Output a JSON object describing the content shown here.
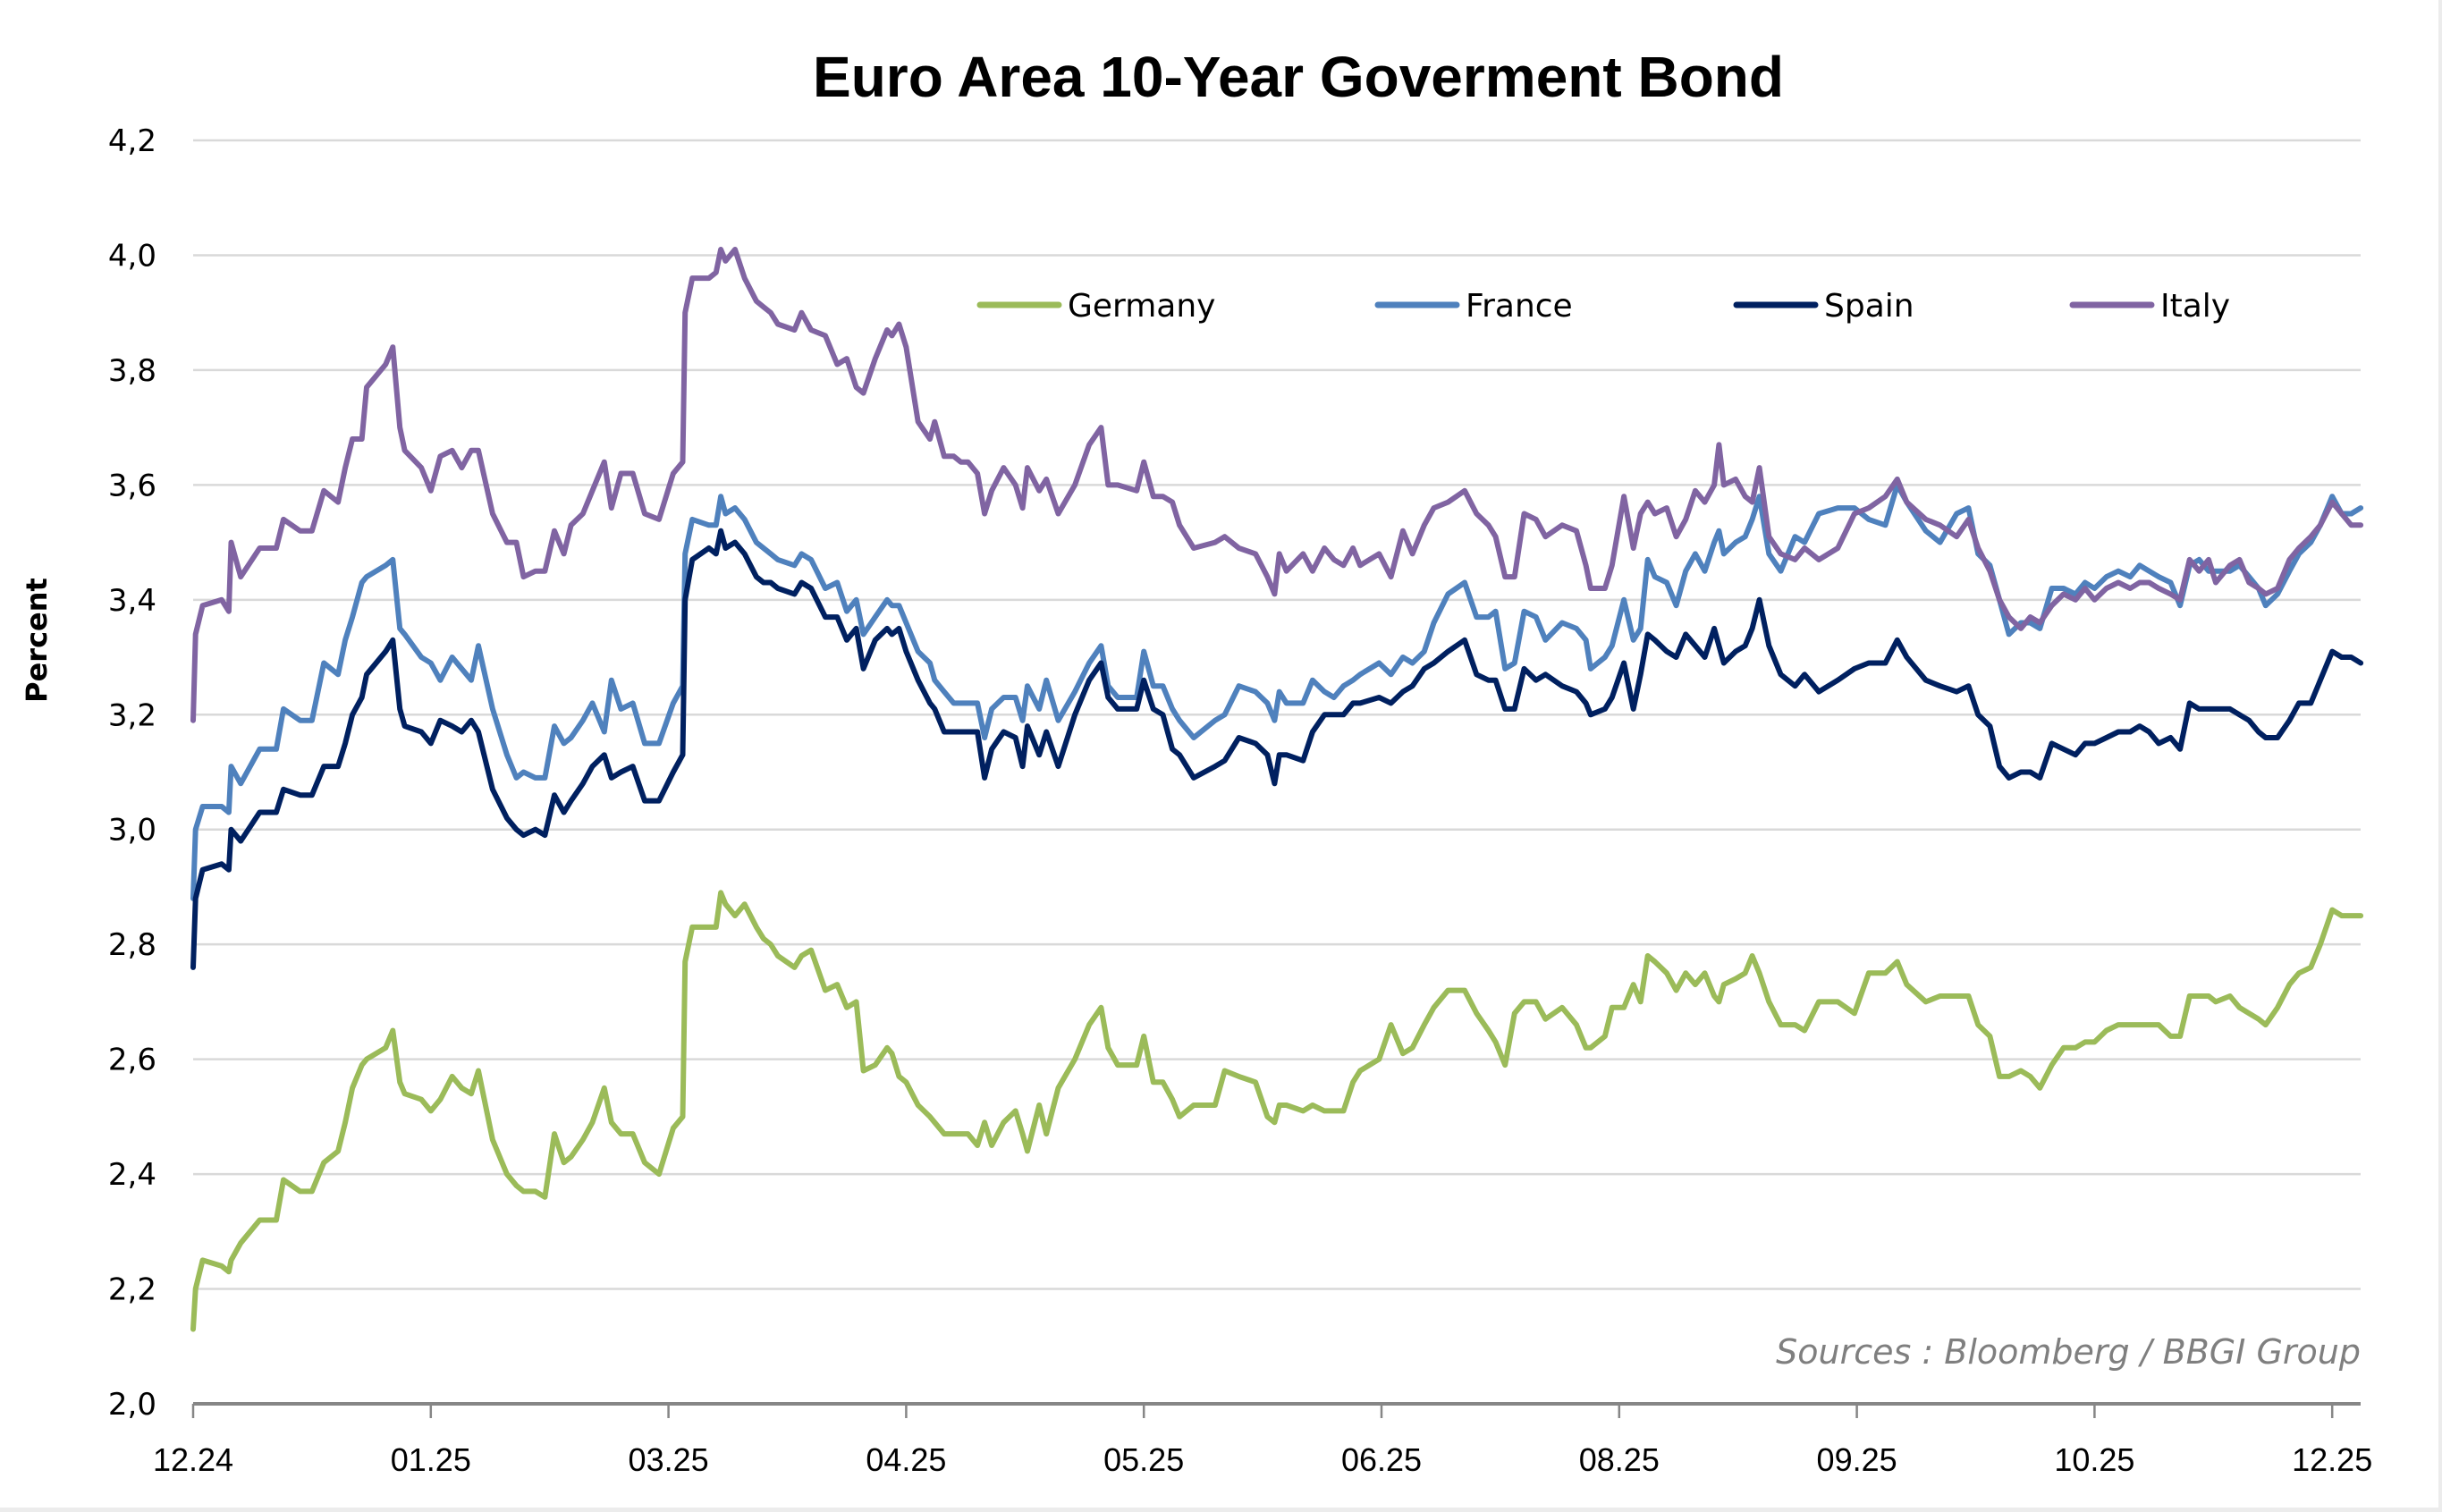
{
  "chart_data": {
    "type": "line",
    "title": "Euro Area 10-Year Goverment Bond",
    "xlabel": "",
    "ylabel": "Percent",
    "ylim": [
      2.0,
      4.2
    ],
    "yticks": [
      2.0,
      2.2,
      2.4,
      2.6,
      2.8,
      3.0,
      3.2,
      3.4,
      3.6,
      3.8,
      4.0,
      4.2
    ],
    "ytick_labels": [
      "2,0",
      "2,2",
      "2,4",
      "2,6",
      "2,8",
      "3,0",
      "3,2",
      "3,4",
      "3,6",
      "3,8",
      "4,0",
      "4,2"
    ],
    "x_unit": "months since 12.24",
    "xlim": [
      0,
      9.12
    ],
    "xticks": [
      0,
      1,
      2,
      3,
      4,
      5,
      6,
      7,
      8,
      9
    ],
    "xtick_labels": [
      "12.24",
      "01.25",
      "03.25",
      "04.25",
      "05.25",
      "06.25",
      "08.25",
      "09.25",
      "10.25",
      "12.25"
    ],
    "grid": true,
    "legend_position": "top-right",
    "source": "Sources : Bloomberg / BBGI Group",
    "x": [
      0.0,
      0.01,
      0.04,
      0.12,
      0.15,
      0.16,
      0.2,
      0.28,
      0.35,
      0.38,
      0.45,
      0.5,
      0.55,
      0.61,
      0.64,
      0.67,
      0.71,
      0.73,
      0.81,
      0.84,
      0.87,
      0.89,
      0.96,
      1.0,
      1.04,
      1.09,
      1.13,
      1.17,
      1.2,
      1.26,
      1.32,
      1.36,
      1.39,
      1.44,
      1.48,
      1.52,
      1.56,
      1.59,
      1.64,
      1.68,
      1.73,
      1.76,
      1.8,
      1.85,
      1.9,
      1.96,
      2.02,
      2.06,
      2.07,
      2.1,
      2.17,
      2.2,
      2.22,
      2.24,
      2.28,
      2.32,
      2.37,
      2.4,
      2.43,
      2.46,
      2.53,
      2.56,
      2.6,
      2.66,
      2.71,
      2.75,
      2.79,
      2.82,
      2.87,
      2.92,
      2.94,
      2.97,
      3.0,
      3.05,
      3.1,
      3.12,
      3.16,
      3.2,
      3.23,
      3.26,
      3.3,
      3.33,
      3.36,
      3.41,
      3.46,
      3.49,
      3.51,
      3.56,
      3.59,
      3.64,
      3.71,
      3.77,
      3.82,
      3.85,
      3.89,
      3.97,
      4.0,
      4.04,
      4.08,
      4.12,
      4.15,
      4.21,
      4.3,
      4.34,
      4.4,
      4.47,
      4.52,
      4.55,
      4.57,
      4.6,
      4.67,
      4.71,
      4.76,
      4.8,
      4.84,
      4.88,
      4.91,
      4.99,
      5.04,
      5.09,
      5.13,
      5.18,
      5.22,
      5.28,
      5.35,
      5.4,
      5.45,
      5.48,
      5.52,
      5.56,
      5.6,
      5.65,
      5.69,
      5.76,
      5.82,
      5.86,
      5.88,
      5.94,
      5.97,
      6.02,
      6.06,
      6.09,
      6.12,
      6.15,
      6.2,
      6.24,
      6.28,
      6.32,
      6.36,
      6.4,
      6.42,
      6.44,
      6.49,
      6.53,
      6.56,
      6.59,
      6.63,
      6.68,
      6.74,
      6.78,
      6.84,
      6.92,
      6.99,
      7.05,
      7.12,
      7.17,
      7.21,
      7.29,
      7.35,
      7.42,
      7.47,
      7.51,
      7.56,
      7.6,
      7.64,
      7.69,
      7.73,
      7.77,
      7.82,
      7.87,
      7.92,
      7.96,
      8.0,
      8.05,
      8.1,
      8.15,
      8.19,
      8.23,
      8.27,
      8.32,
      8.36,
      8.4,
      8.44,
      8.48,
      8.51,
      8.57,
      8.61,
      8.65,
      8.69,
      8.72,
      8.77,
      8.82,
      8.86,
      8.91,
      8.95,
      9.0,
      9.04,
      9.08,
      9.12
    ],
    "series": [
      {
        "name": "Germany",
        "color": "#9BBB59",
        "values": [
          2.13,
          2.2,
          2.25,
          2.24,
          2.23,
          2.25,
          2.28,
          2.32,
          2.32,
          2.39,
          2.37,
          2.37,
          2.42,
          2.44,
          2.49,
          2.55,
          2.59,
          2.6,
          2.62,
          2.65,
          2.56,
          2.54,
          2.53,
          2.51,
          2.53,
          2.57,
          2.55,
          2.54,
          2.58,
          2.46,
          2.4,
          2.38,
          2.37,
          2.37,
          2.36,
          2.47,
          2.42,
          2.43,
          2.46,
          2.49,
          2.55,
          2.49,
          2.47,
          2.47,
          2.42,
          2.4,
          2.48,
          2.5,
          2.77,
          2.83,
          2.83,
          2.83,
          2.89,
          2.87,
          2.85,
          2.87,
          2.83,
          2.81,
          2.8,
          2.78,
          2.76,
          2.78,
          2.79,
          2.72,
          2.73,
          2.69,
          2.7,
          2.58,
          2.59,
          2.62,
          2.61,
          2.57,
          2.56,
          2.52,
          2.5,
          2.49,
          2.47,
          2.47,
          2.47,
          2.47,
          2.45,
          2.49,
          2.45,
          2.49,
          2.51,
          2.47,
          2.44,
          2.52,
          2.47,
          2.55,
          2.6,
          2.66,
          2.69,
          2.62,
          2.59,
          2.59,
          2.64,
          2.56,
          2.56,
          2.53,
          2.5,
          2.52,
          2.52,
          2.58,
          2.57,
          2.56,
          2.5,
          2.49,
          2.52,
          2.52,
          2.51,
          2.52,
          2.51,
          2.51,
          2.51,
          2.56,
          2.58,
          2.6,
          2.66,
          2.61,
          2.62,
          2.66,
          2.69,
          2.72,
          2.72,
          2.68,
          2.65,
          2.63,
          2.59,
          2.68,
          2.7,
          2.7,
          2.67,
          2.69,
          2.66,
          2.62,
          2.62,
          2.64,
          2.69,
          2.69,
          2.73,
          2.7,
          2.78,
          2.77,
          2.75,
          2.72,
          2.75,
          2.73,
          2.75,
          2.71,
          2.7,
          2.73,
          2.74,
          2.75,
          2.78,
          2.75,
          2.7,
          2.66,
          2.66,
          2.65,
          2.7,
          2.7,
          2.68,
          2.75,
          2.75,
          2.77,
          2.73,
          2.7,
          2.71,
          2.71,
          2.71,
          2.66,
          2.64,
          2.57,
          2.57,
          2.58,
          2.57,
          2.55,
          2.59,
          2.62,
          2.62,
          2.63,
          2.63,
          2.65,
          2.66,
          2.66,
          2.66,
          2.66,
          2.66,
          2.64,
          2.64,
          2.71,
          2.71,
          2.71,
          2.7,
          2.71,
          2.69,
          2.68,
          2.67,
          2.66,
          2.69,
          2.73,
          2.75,
          2.76,
          2.8,
          2.86,
          2.85,
          2.85,
          2.85
        ]
      },
      {
        "name": "France",
        "color": "#4F81BD",
        "values": [
          2.88,
          3.0,
          3.04,
          3.04,
          3.03,
          3.11,
          3.08,
          3.14,
          3.14,
          3.21,
          3.19,
          3.19,
          3.29,
          3.27,
          3.33,
          3.37,
          3.43,
          3.44,
          3.46,
          3.47,
          3.35,
          3.34,
          3.3,
          3.29,
          3.26,
          3.3,
          3.28,
          3.26,
          3.32,
          3.21,
          3.13,
          3.09,
          3.1,
          3.09,
          3.09,
          3.18,
          3.15,
          3.16,
          3.19,
          3.22,
          3.17,
          3.26,
          3.21,
          3.22,
          3.15,
          3.15,
          3.22,
          3.25,
          3.48,
          3.54,
          3.53,
          3.53,
          3.58,
          3.55,
          3.56,
          3.54,
          3.5,
          3.49,
          3.48,
          3.47,
          3.46,
          3.48,
          3.47,
          3.42,
          3.43,
          3.38,
          3.4,
          3.34,
          3.37,
          3.4,
          3.39,
          3.39,
          3.36,
          3.31,
          3.29,
          3.26,
          3.24,
          3.22,
          3.22,
          3.22,
          3.22,
          3.16,
          3.21,
          3.23,
          3.23,
          3.19,
          3.25,
          3.21,
          3.26,
          3.19,
          3.24,
          3.29,
          3.32,
          3.25,
          3.23,
          3.23,
          3.31,
          3.25,
          3.25,
          3.21,
          3.19,
          3.16,
          3.19,
          3.2,
          3.25,
          3.24,
          3.22,
          3.19,
          3.24,
          3.22,
          3.22,
          3.26,
          3.24,
          3.23,
          3.25,
          3.26,
          3.27,
          3.29,
          3.27,
          3.3,
          3.29,
          3.31,
          3.36,
          3.41,
          3.43,
          3.37,
          3.37,
          3.38,
          3.28,
          3.29,
          3.38,
          3.37,
          3.33,
          3.36,
          3.35,
          3.33,
          3.28,
          3.3,
          3.32,
          3.4,
          3.33,
          3.35,
          3.47,
          3.44,
          3.43,
          3.39,
          3.45,
          3.48,
          3.45,
          3.5,
          3.52,
          3.48,
          3.5,
          3.51,
          3.54,
          3.58,
          3.48,
          3.45,
          3.51,
          3.5,
          3.55,
          3.56,
          3.56,
          3.54,
          3.53,
          3.6,
          3.57,
          3.52,
          3.5,
          3.55,
          3.56,
          3.48,
          3.46,
          3.4,
          3.34,
          3.36,
          3.36,
          3.35,
          3.42,
          3.42,
          3.41,
          3.43,
          3.42,
          3.44,
          3.45,
          3.44,
          3.46,
          3.45,
          3.44,
          3.43,
          3.39,
          3.46,
          3.47,
          3.45,
          3.45,
          3.45,
          3.46,
          3.44,
          3.42,
          3.39,
          3.41,
          3.45,
          3.48,
          3.5,
          3.53,
          3.58,
          3.55,
          3.55,
          3.56
        ]
      },
      {
        "name": "Spain",
        "color": "#002060",
        "values": [
          2.76,
          2.88,
          2.93,
          2.94,
          2.93,
          3.0,
          2.98,
          3.03,
          3.03,
          3.07,
          3.06,
          3.06,
          3.11,
          3.11,
          3.15,
          3.2,
          3.23,
          3.27,
          3.31,
          3.33,
          3.21,
          3.18,
          3.17,
          3.15,
          3.19,
          3.18,
          3.17,
          3.19,
          3.17,
          3.07,
          3.02,
          3.0,
          2.99,
          3.0,
          2.99,
          3.06,
          3.03,
          3.05,
          3.08,
          3.11,
          3.13,
          3.09,
          3.1,
          3.11,
          3.05,
          3.05,
          3.1,
          3.13,
          3.4,
          3.47,
          3.49,
          3.48,
          3.52,
          3.49,
          3.5,
          3.48,
          3.44,
          3.43,
          3.43,
          3.42,
          3.41,
          3.43,
          3.42,
          3.37,
          3.37,
          3.33,
          3.35,
          3.28,
          3.33,
          3.35,
          3.34,
          3.35,
          3.31,
          3.26,
          3.22,
          3.21,
          3.17,
          3.17,
          3.17,
          3.17,
          3.17,
          3.09,
          3.14,
          3.17,
          3.16,
          3.11,
          3.18,
          3.13,
          3.17,
          3.11,
          3.2,
          3.26,
          3.29,
          3.23,
          3.21,
          3.21,
          3.26,
          3.21,
          3.2,
          3.14,
          3.13,
          3.09,
          3.11,
          3.12,
          3.16,
          3.15,
          3.13,
          3.08,
          3.13,
          3.13,
          3.12,
          3.17,
          3.2,
          3.2,
          3.2,
          3.22,
          3.22,
          3.23,
          3.22,
          3.24,
          3.25,
          3.28,
          3.29,
          3.31,
          3.33,
          3.27,
          3.26,
          3.26,
          3.21,
          3.21,
          3.28,
          3.26,
          3.27,
          3.25,
          3.24,
          3.22,
          3.2,
          3.21,
          3.23,
          3.29,
          3.21,
          3.27,
          3.34,
          3.33,
          3.31,
          3.3,
          3.34,
          3.32,
          3.3,
          3.35,
          3.32,
          3.29,
          3.31,
          3.32,
          3.35,
          3.4,
          3.32,
          3.27,
          3.25,
          3.27,
          3.24,
          3.26,
          3.28,
          3.29,
          3.29,
          3.33,
          3.3,
          3.26,
          3.25,
          3.24,
          3.25,
          3.2,
          3.18,
          3.11,
          3.09,
          3.1,
          3.1,
          3.09,
          3.15,
          3.14,
          3.13,
          3.15,
          3.15,
          3.16,
          3.17,
          3.17,
          3.18,
          3.17,
          3.15,
          3.16,
          3.14,
          3.22,
          3.21,
          3.21,
          3.21,
          3.21,
          3.2,
          3.19,
          3.17,
          3.16,
          3.16,
          3.19,
          3.22,
          3.22,
          3.26,
          3.31,
          3.3,
          3.3,
          3.29
        ]
      },
      {
        "name": "Italy",
        "color": "#8064A2",
        "values": [
          3.19,
          3.34,
          3.39,
          3.4,
          3.38,
          3.5,
          3.44,
          3.49,
          3.49,
          3.54,
          3.52,
          3.52,
          3.59,
          3.57,
          3.63,
          3.68,
          3.68,
          3.77,
          3.81,
          3.84,
          3.7,
          3.66,
          3.63,
          3.59,
          3.65,
          3.66,
          3.63,
          3.66,
          3.66,
          3.55,
          3.5,
          3.5,
          3.44,
          3.45,
          3.45,
          3.52,
          3.48,
          3.53,
          3.55,
          3.59,
          3.64,
          3.56,
          3.62,
          3.62,
          3.55,
          3.54,
          3.62,
          3.64,
          3.9,
          3.96,
          3.96,
          3.97,
          4.01,
          3.99,
          4.01,
          3.96,
          3.92,
          3.91,
          3.9,
          3.88,
          3.87,
          3.9,
          3.87,
          3.86,
          3.81,
          3.82,
          3.77,
          3.76,
          3.82,
          3.87,
          3.86,
          3.88,
          3.84,
          3.71,
          3.68,
          3.71,
          3.65,
          3.65,
          3.64,
          3.64,
          3.62,
          3.55,
          3.59,
          3.63,
          3.6,
          3.56,
          3.63,
          3.59,
          3.61,
          3.55,
          3.6,
          3.67,
          3.7,
          3.6,
          3.6,
          3.59,
          3.64,
          3.58,
          3.58,
          3.57,
          3.53,
          3.49,
          3.5,
          3.51,
          3.49,
          3.48,
          3.44,
          3.41,
          3.48,
          3.45,
          3.48,
          3.45,
          3.49,
          3.47,
          3.46,
          3.49,
          3.46,
          3.48,
          3.44,
          3.52,
          3.48,
          3.53,
          3.56,
          3.57,
          3.59,
          3.55,
          3.53,
          3.51,
          3.44,
          3.44,
          3.55,
          3.54,
          3.51,
          3.53,
          3.52,
          3.46,
          3.42,
          3.42,
          3.46,
          3.58,
          3.49,
          3.55,
          3.57,
          3.55,
          3.56,
          3.51,
          3.54,
          3.59,
          3.57,
          3.6,
          3.67,
          3.6,
          3.61,
          3.58,
          3.57,
          3.63,
          3.51,
          3.48,
          3.47,
          3.49,
          3.47,
          3.49,
          3.55,
          3.56,
          3.58,
          3.61,
          3.57,
          3.54,
          3.53,
          3.51,
          3.54,
          3.49,
          3.45,
          3.4,
          3.37,
          3.35,
          3.37,
          3.36,
          3.39,
          3.41,
          3.4,
          3.42,
          3.4,
          3.42,
          3.43,
          3.42,
          3.43,
          3.43,
          3.42,
          3.41,
          3.4,
          3.47,
          3.45,
          3.47,
          3.43,
          3.46,
          3.47,
          3.43,
          3.42,
          3.41,
          3.42,
          3.47,
          3.49,
          3.51,
          3.53,
          3.57,
          3.55,
          3.53,
          3.53
        ]
      }
    ]
  }
}
